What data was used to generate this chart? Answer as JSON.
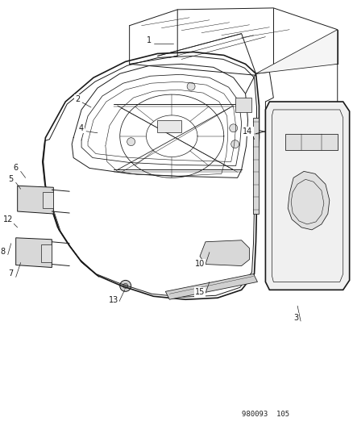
{
  "bg_color": "#ffffff",
  "line_color": "#1a1a1a",
  "figure_width": 4.39,
  "figure_height": 5.33,
  "dpi": 100,
  "watermark_text": "980093  105",
  "watermark_fontsize": 6.5
}
